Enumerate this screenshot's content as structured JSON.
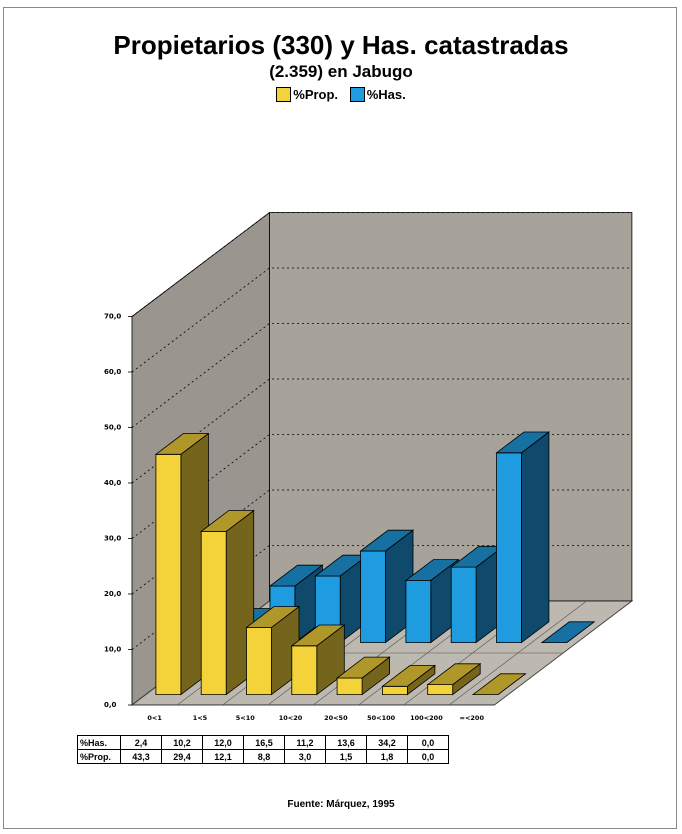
{
  "colors": {
    "prop": "#f4d23a",
    "has": "#1f9be0",
    "wall": "#a7a29a",
    "floor": "#bdb8b0"
  },
  "legend": {
    "prop_label": "%Prop.",
    "has_label": "%Has."
  },
  "source": "Fuente: Márquez, 1995",
  "chart_data": {
    "type": "bar",
    "title": "Propietarios (330) y Has. catastradas",
    "subtitle": "(2.359) en Jabugo",
    "categories": [
      "0<1",
      "1<5",
      "5<10",
      "10<20",
      "20<50",
      "50<100",
      "100<200",
      "=<200"
    ],
    "ylim": [
      0,
      70
    ],
    "yticks": [
      "0,0",
      "10,0",
      "20,0",
      "30,0",
      "40,0",
      "50,0",
      "60,0",
      "70,0"
    ],
    "grid": true,
    "legend_position": "top",
    "three_d": true,
    "series": [
      {
        "name": "%Prop.",
        "values": [
          43.3,
          29.4,
          12.1,
          8.8,
          3.0,
          1.5,
          1.8,
          0.0
        ]
      },
      {
        "name": "%Has.",
        "values": [
          2.4,
          10.2,
          12.0,
          16.5,
          11.2,
          13.6,
          34.2,
          0.0
        ]
      }
    ]
  },
  "table": {
    "rows": [
      {
        "label": "%Has.",
        "values": [
          "2,4",
          "10,2",
          "12,0",
          "16,5",
          "11,2",
          "13,6",
          "34,2",
          "0,0"
        ]
      },
      {
        "label": "%Prop.",
        "values": [
          "43,3",
          "29,4",
          "12,1",
          "8,8",
          "3,0",
          "1,5",
          "1,8",
          "0,0"
        ]
      }
    ]
  }
}
